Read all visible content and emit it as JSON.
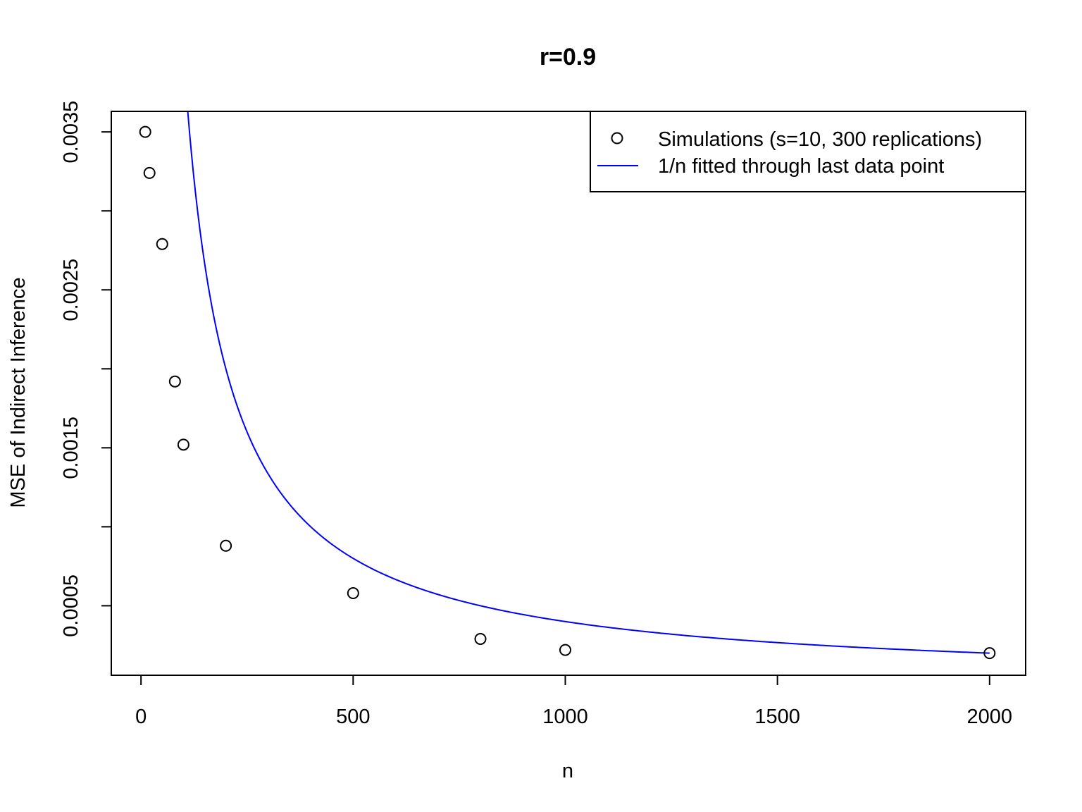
{
  "chart_data": {
    "type": "scatter",
    "title": "r=0.9",
    "xlabel": "n",
    "ylabel": "MSE of Indirect Inference",
    "xlim": [
      -70,
      2085
    ],
    "ylim": [
      6e-05,
      0.00363
    ],
    "x_ticks": [
      0,
      500,
      1000,
      1500,
      2000
    ],
    "x_tick_labels": [
      "0",
      "500",
      "1000",
      "1500",
      "2000"
    ],
    "y_ticks": [
      0.0005,
      0.001,
      0.0015,
      0.002,
      0.0025,
      0.003,
      0.0035
    ],
    "y_tick_labels": [
      "0.0005",
      "",
      "0.0015",
      "",
      "0.0025",
      "",
      "0.0035"
    ],
    "grid": false,
    "legend_position": "top-right",
    "series": [
      {
        "name": "Simulations (s=10, 300 replications)",
        "kind": "points",
        "marker": "open-circle",
        "color": "#000000",
        "x": [
          10,
          20,
          50,
          80,
          100,
          200,
          500,
          800,
          1000,
          2000
        ],
        "y": [
          0.0035,
          0.00324,
          0.00279,
          0.00192,
          0.00152,
          0.00088,
          0.00058,
          0.00029,
          0.00022,
          0.0002
        ]
      },
      {
        "name": "1/n fitted through last data point",
        "kind": "curve",
        "formula": "0.4 / n",
        "coefficient": 0.4,
        "x_range": [
          100,
          2000
        ],
        "color": "#0000ff"
      }
    ]
  }
}
